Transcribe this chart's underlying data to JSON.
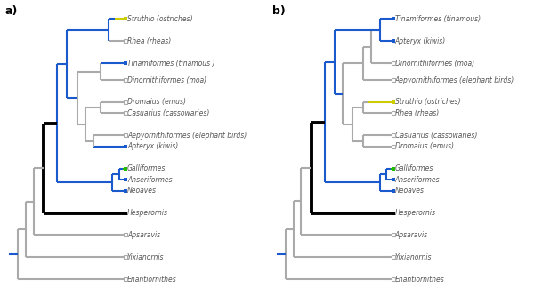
{
  "figsize": [
    6.0,
    3.42
  ],
  "dpi": 100,
  "background": "#ffffff",
  "label_color": "#555555",
  "label_fontsize": 5.5,
  "gray": "#aaaaaa",
  "blue": "#1a5acd",
  "green": "#22bb00",
  "black": "#000000",
  "yellow": "#cccc00",
  "lw_thin": 1.5,
  "lw_thick": 2.8,
  "panel_a": {
    "label": "a)",
    "tip_x": 9.5,
    "xlim": [
      0.0,
      17.5
    ],
    "ylim": [
      -10.5,
      16.5
    ],
    "taxa": [
      "Struthio (ostriches)",
      "Rhea (rheas)",
      "Tinamiformes (tinamous )",
      "Dinornithiformes (moa)",
      "Dromaius (emus)",
      "Casuarius (cassowaries)",
      "Aepyornithiformes (elephant birds)",
      "Apteryx (kiwis)",
      "Galliformes",
      "Anseriformes",
      "Neoaves",
      "Hesperornis",
      "Apsaravis",
      "Yixianornis",
      "Enantiornithes"
    ],
    "tip_y": [
      15.0,
      13.0,
      11.0,
      9.5,
      7.5,
      6.5,
      4.5,
      3.5,
      1.5,
      0.5,
      -0.5,
      -2.5,
      -4.5,
      -6.5,
      -8.5
    ],
    "tip_colors": [
      "yellow",
      "gray",
      "blue",
      "gray",
      "gray",
      "gray",
      "gray",
      "blue",
      "green",
      "blue",
      "blue",
      "black",
      "gray",
      "gray",
      "gray"
    ],
    "tip_filled": [
      true,
      false,
      true,
      false,
      false,
      false,
      false,
      true,
      true,
      true,
      true,
      true,
      false,
      false,
      false
    ]
  },
  "panel_b": {
    "label": "b)",
    "tip_x": 9.5,
    "xlim": [
      0.0,
      17.5
    ],
    "ylim": [
      -10.5,
      16.5
    ],
    "taxa": [
      "Tinamiformes (tinamous)",
      "Apteryx (kiwis)",
      "Dinornithiformes (moa)",
      "Aepyornithiformes (elephant birds)",
      "Struthio (ostriches)",
      "Rhea (rheas)",
      "Casuarius (cassowaries)",
      "Dromaius (emus)",
      "Galliformes",
      "Anseriformes",
      "Neoaves",
      "Hesperornis",
      "Apsaravis",
      "Yixianornis",
      "Enantiornithes"
    ],
    "tip_y": [
      15.0,
      13.0,
      11.0,
      9.5,
      7.5,
      6.5,
      4.5,
      3.5,
      1.5,
      0.5,
      -0.5,
      -2.5,
      -4.5,
      -6.5,
      -8.5
    ],
    "tip_colors": [
      "blue",
      "blue",
      "gray",
      "gray",
      "yellow",
      "gray",
      "gray",
      "gray",
      "green",
      "blue",
      "blue",
      "black",
      "gray",
      "gray",
      "gray"
    ],
    "tip_filled": [
      true,
      true,
      false,
      false,
      true,
      false,
      false,
      false,
      true,
      true,
      true,
      true,
      false,
      false,
      false
    ]
  }
}
